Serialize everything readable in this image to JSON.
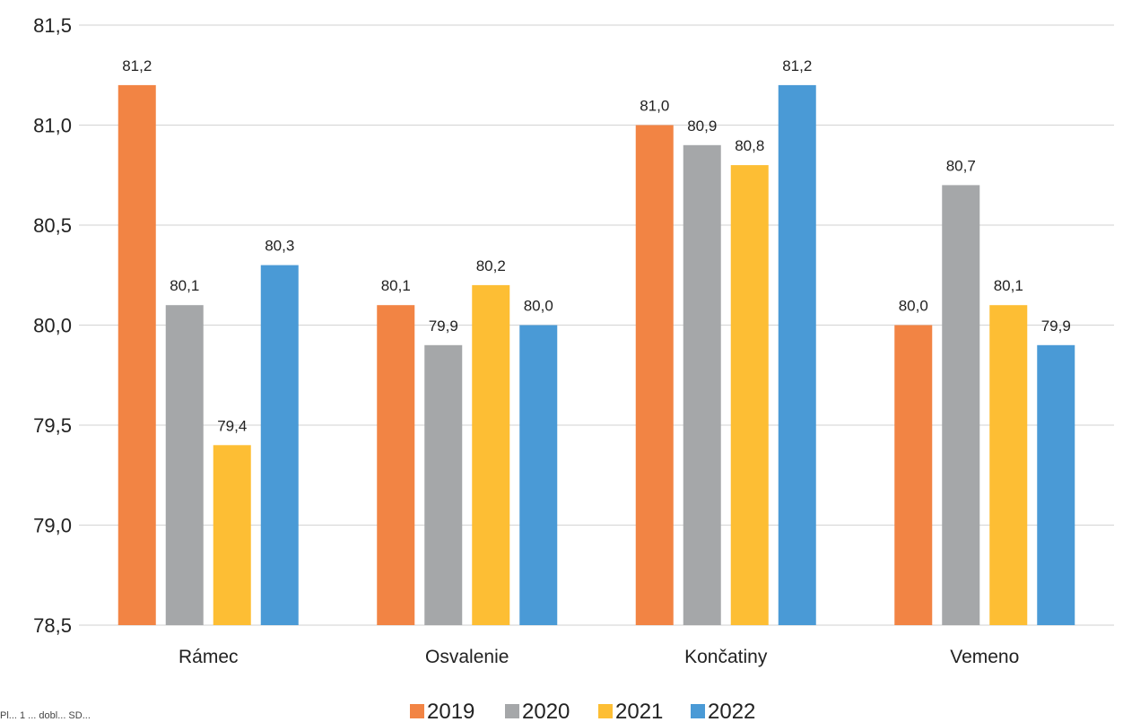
{
  "chart_data": {
    "type": "bar",
    "categories": [
      "Rámec",
      "Osvalenie",
      "Končatiny",
      "Vemeno"
    ],
    "series": [
      {
        "name": "2019",
        "color": "#F28444",
        "values": [
          81.2,
          80.1,
          81.0,
          80.0
        ],
        "labels": [
          "81,2",
          "80,1",
          "81,0",
          "80,0"
        ]
      },
      {
        "name": "2020",
        "color": "#A5A7A9",
        "values": [
          80.1,
          79.9,
          80.9,
          80.7
        ],
        "labels": [
          "80,1",
          "79,9",
          "80,9",
          "80,7"
        ]
      },
      {
        "name": "2021",
        "color": "#FDBE34",
        "values": [
          79.4,
          80.2,
          80.8,
          80.1
        ],
        "labels": [
          "79,4",
          "80,2",
          "80,8",
          "80,1"
        ]
      },
      {
        "name": "2022",
        "color": "#4A9AD6",
        "values": [
          80.3,
          80.0,
          81.2,
          79.9
        ],
        "labels": [
          "80,3",
          "80,0",
          "81,2",
          "79,9"
        ]
      }
    ],
    "ylim": [
      78.5,
      81.5
    ],
    "yticks": [
      78.5,
      79.0,
      79.5,
      80.0,
      80.5,
      81.0,
      81.5
    ],
    "ytick_labels": [
      "78,5",
      "79,0",
      "79,5",
      "80,0",
      "80,5",
      "81,0",
      "81,5"
    ],
    "grid": true,
    "legend_position": "bottom",
    "title": "",
    "xlabel": "",
    "ylabel": ""
  },
  "footnote": "Pl... 1 ... dobl... SD..."
}
